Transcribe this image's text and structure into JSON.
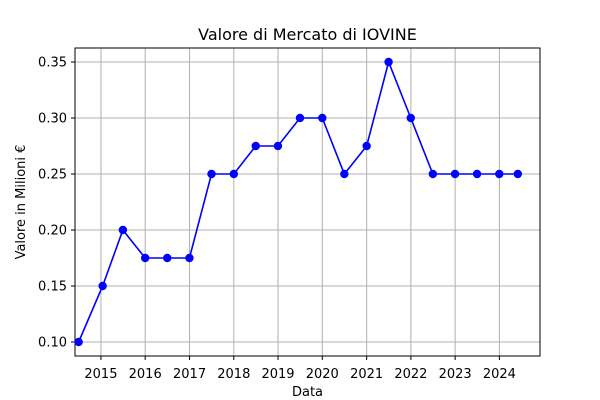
{
  "chart_data": {
    "type": "line",
    "title": "Valore di Mercato di IOVINE",
    "xlabel": "Data",
    "ylabel": "Valore in Milioni €",
    "x_tick_labels": [
      "2015",
      "2016",
      "2017",
      "2018",
      "2019",
      "2020",
      "2021",
      "2022",
      "2023",
      "2024"
    ],
    "y_tick_labels": [
      "0.10",
      "0.15",
      "0.20",
      "0.25",
      "0.30",
      "0.35"
    ],
    "xlim": [
      "2014-06-01",
      "2024-12-01"
    ],
    "ylim": [
      0.0875,
      0.3625
    ],
    "grid": true,
    "series": [
      {
        "color": "#0000ff",
        "x": [
          "2014-07-01",
          "2015-01-15",
          "2015-07-01",
          "2016-01-01",
          "2016-07-01",
          "2016-12-31",
          "2017-07-01",
          "2018-01-01",
          "2018-07-01",
          "2018-12-31",
          "2019-07-01",
          "2020-01-01",
          "2020-07-01",
          "2021-01-01",
          "2021-07-01",
          "2021-12-31",
          "2022-07-01",
          "2022-12-31",
          "2023-07-01",
          "2023-12-31",
          "2024-06-01"
        ],
        "values": [
          0.1,
          0.15,
          0.2,
          0.175,
          0.175,
          0.175,
          0.25,
          0.25,
          0.275,
          0.275,
          0.3,
          0.3,
          0.25,
          0.275,
          0.35,
          0.3,
          0.25,
          0.25,
          0.25,
          0.25,
          0.25
        ]
      }
    ]
  }
}
